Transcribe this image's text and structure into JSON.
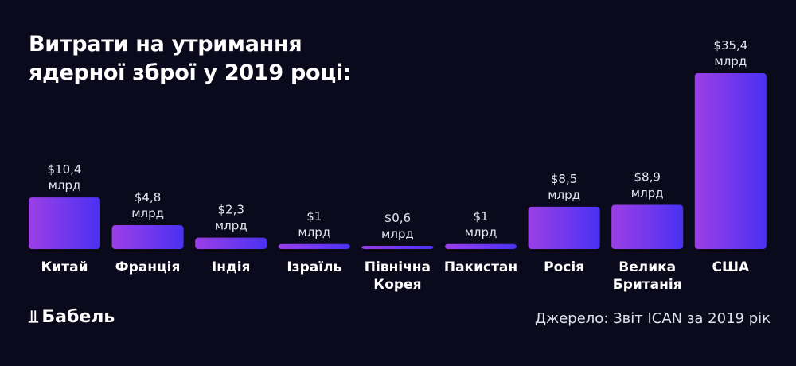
{
  "chart_data": {
    "type": "bar",
    "title": "Витрати на утримання ядерної зброї у 2019 році:",
    "title_lines": [
      "Витрати на утримання",
      "ядерної зброї у 2019 році:"
    ],
    "categories": [
      [
        "Китай"
      ],
      [
        "Франція"
      ],
      [
        "Індія"
      ],
      [
        "Ізраїль"
      ],
      [
        "Північна",
        "Корея"
      ],
      [
        "Пакистан"
      ],
      [
        "Росія"
      ],
      [
        "Велика",
        "Британія"
      ],
      [
        "США"
      ]
    ],
    "values": [
      10.4,
      4.8,
      2.3,
      1,
      0.6,
      1,
      8.5,
      8.9,
      35.4
    ],
    "value_labels": [
      "$10,4",
      "$4,8",
      "$2,3",
      "$1",
      "$0,6",
      "$1",
      "$8,5",
      "$8,9",
      "$35,4"
    ],
    "unit_label": "млрд",
    "xlabel": "",
    "ylabel": "",
    "ylim": [
      0,
      35.4
    ],
    "grid": false,
    "colors": {
      "bar_start": "#9c3fe6",
      "bar_end": "#4a31f2",
      "background": "#0b0a1d"
    }
  },
  "logo": {
    "text": "Бабель"
  },
  "source": "Джерело: Звіт ICAN за 2019 рік"
}
